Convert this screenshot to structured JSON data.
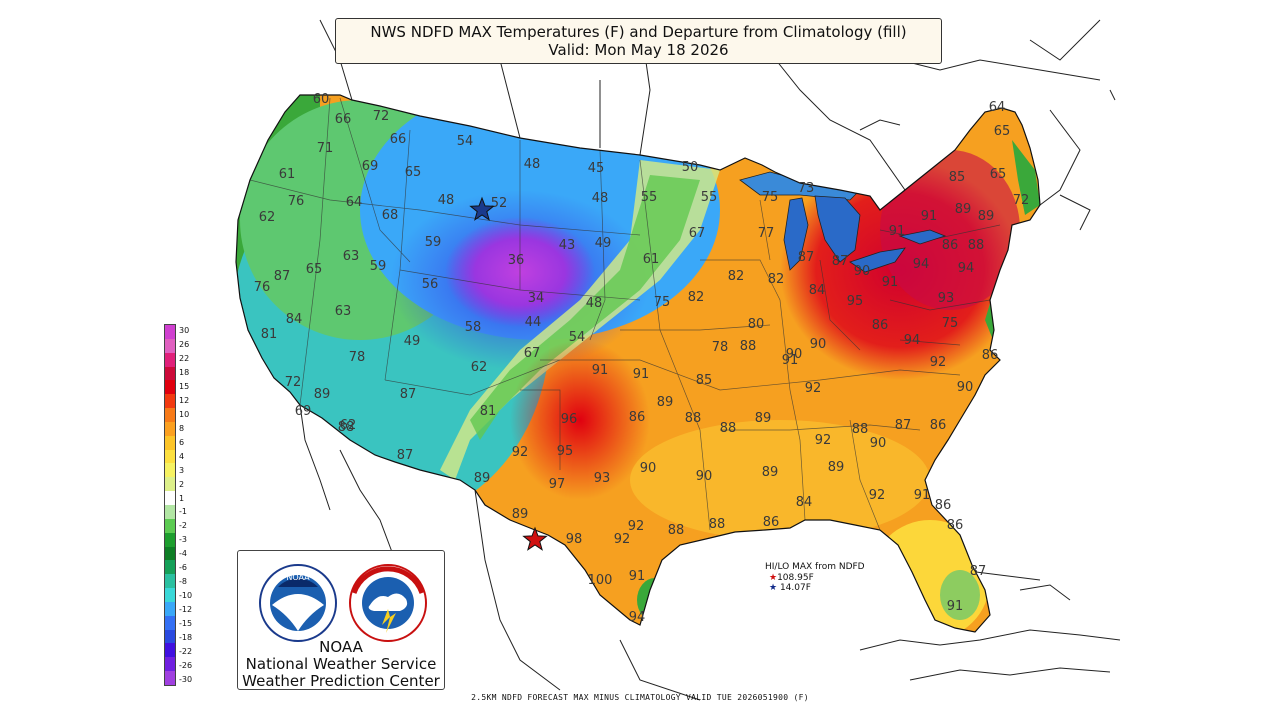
{
  "title": {
    "line1": "NWS NDFD MAX Temperatures (F) and Departure from Climatology (fill)",
    "line2": "Valid: Mon May 18 2026"
  },
  "footer": "2.5KM NDFD FORECAST MAX MINUS CLIMATOLOGY VALID TUE 2026051900 (F)",
  "legend": {
    "labels": [
      "30",
      "26",
      "22",
      "18",
      "15",
      "12",
      "10",
      "8",
      "6",
      "4",
      "3",
      "2",
      "1",
      "-1",
      "-2",
      "-3",
      "-4",
      "-6",
      "-8",
      "-10",
      "-12",
      "-15",
      "-18",
      "-22",
      "-26",
      "-30"
    ],
    "colors": [
      "#d040d0",
      "#e060c0",
      "#e0207a",
      "#cc0a3a",
      "#e0000e",
      "#f23a10",
      "#f77a18",
      "#fba020",
      "#fcc428",
      "#fde040",
      "#f6f262",
      "#ddf08a",
      "#ffffff",
      "#b2e6a4",
      "#5ccb52",
      "#1d9e2e",
      "#0e7e25",
      "#15a058",
      "#2ac0a0",
      "#3ad8d8",
      "#3aa8f8",
      "#3470f4",
      "#2a4ae0",
      "#4010e0",
      "#7020e0",
      "#a040e0"
    ]
  },
  "logo": {
    "emblem_icon": "noaa-emblem",
    "seal_icon": "national-weather-service-seal",
    "org_line1": "NOAA",
    "org_line2": "National Weather Service",
    "org_line3": "Weather Prediction Center"
  },
  "hilo": {
    "title": "HI/LO MAX from NDFD",
    "hi_value": "108.95F",
    "lo_value": "14.07F",
    "hi_color": "#d01010",
    "lo_color": "#102a8a"
  },
  "temps": [
    "60",
    "66",
    "72",
    "66",
    "54",
    "48",
    "45",
    "50",
    "71",
    "69",
    "65",
    "61",
    "76",
    "64",
    "48",
    "52",
    "48",
    "55",
    "55",
    "75",
    "73",
    "68",
    "62",
    "59",
    "67",
    "77",
    "63",
    "59",
    "43",
    "49",
    "61",
    "87",
    "65",
    "36",
    "82",
    "82",
    "87",
    "87",
    "76",
    "56",
    "34",
    "75",
    "82",
    "84",
    "63",
    "58",
    "44",
    "48",
    "54",
    "81",
    "84",
    "49",
    "67",
    "78",
    "80",
    "88",
    "90",
    "78",
    "62",
    "91",
    "91",
    "85",
    "92",
    "72",
    "89",
    "81",
    "87",
    "69",
    "62",
    "96",
    "86",
    "89",
    "88",
    "89",
    "88",
    "88",
    "95",
    "92",
    "90",
    "86",
    "88",
    "87",
    "93",
    "90",
    "90",
    "89",
    "89",
    "87",
    "89",
    "92",
    "97",
    "92",
    "86",
    "91",
    "88",
    "88",
    "84",
    "86",
    "92",
    "98",
    "92",
    "86",
    "87",
    "100",
    "91",
    "89",
    "94",
    "91",
    "64",
    "65",
    "85",
    "65",
    "72",
    "91",
    "89",
    "89",
    "91",
    "88",
    "86",
    "90",
    "91",
    "94",
    "94",
    "95",
    "93",
    "75",
    "94",
    "86",
    "92",
    "90",
    "91",
    "90",
    "86"
  ],
  "markers": [
    {
      "name": "low-max-star-marker",
      "color": "#1a3a8c"
    },
    {
      "name": "high-max-star-marker",
      "color": "#d01010"
    }
  ]
}
